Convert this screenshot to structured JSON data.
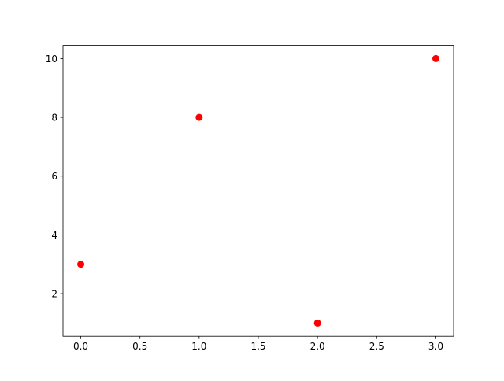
{
  "chart_data": {
    "type": "scatter",
    "title": "",
    "xlabel": "",
    "ylabel": "",
    "x": [
      0,
      1,
      2,
      3
    ],
    "y": [
      3,
      8,
      1,
      10
    ],
    "color": "#ff0000",
    "xlim": [
      -0.15,
      3.15
    ],
    "ylim": [
      0.55,
      10.45
    ],
    "xticks": [
      0.0,
      0.5,
      1.0,
      1.5,
      2.0,
      2.5,
      3.0
    ],
    "xtick_labels": [
      "0.0",
      "0.5",
      "1.0",
      "1.5",
      "2.0",
      "2.5",
      "3.0"
    ],
    "yticks": [
      2,
      4,
      6,
      8,
      10
    ],
    "ytick_labels": [
      "2",
      "4",
      "6",
      "8",
      "10"
    ],
    "grid": false,
    "legend": "none"
  }
}
